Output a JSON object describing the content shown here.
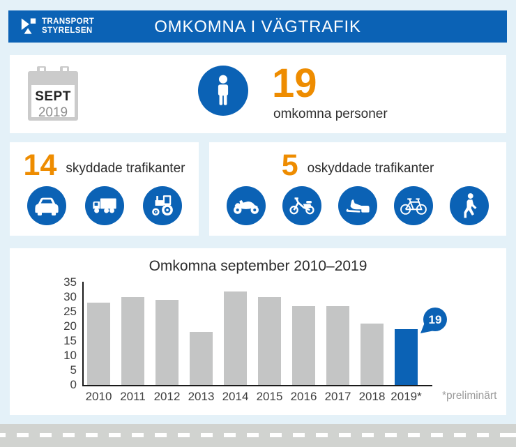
{
  "header": {
    "logo_line1": "TRANSPORT",
    "logo_line2": "STYRELSEN",
    "title": "OMKOMNA I VÄGTRAFIK"
  },
  "summary": {
    "month": "SEPT",
    "year": "2019",
    "count": "19",
    "count_label": "omkomna personer"
  },
  "protected_group": {
    "count": "14",
    "label": "skyddade trafikanter",
    "icons": [
      "car-icon",
      "truck-icon",
      "tractor-icon"
    ]
  },
  "unprotected_group": {
    "count": "5",
    "label": "oskyddade trafikanter",
    "icons": [
      "motorcycle-icon",
      "moped-icon",
      "snowmobile-icon",
      "bicycle-icon",
      "pedestrian-icon"
    ]
  },
  "chart_data": {
    "type": "bar",
    "title": "Omkomna september 2010–2019",
    "categories": [
      "2010",
      "2011",
      "2012",
      "2013",
      "2014",
      "2015",
      "2016",
      "2017",
      "2018",
      "2019*"
    ],
    "values": [
      28,
      30,
      29,
      18,
      32,
      30,
      27,
      27,
      21,
      19
    ],
    "highlight_index": 9,
    "highlight_value_label": "19",
    "footnote": "*preliminärt",
    "xlabel": "",
    "ylabel": "",
    "ylim": [
      0,
      35
    ],
    "ytick_step": 5,
    "grid": false,
    "legend": "none",
    "bar_color": "#C4C5C5",
    "highlight_color": "#0B62B5"
  },
  "colors": {
    "brand_blue": "#0B62B5",
    "accent_orange": "#EE8C00",
    "background_light_blue": "#E4F1F8",
    "bar_gray": "#C4C5C5",
    "road_gray": "#D1D3D0"
  }
}
